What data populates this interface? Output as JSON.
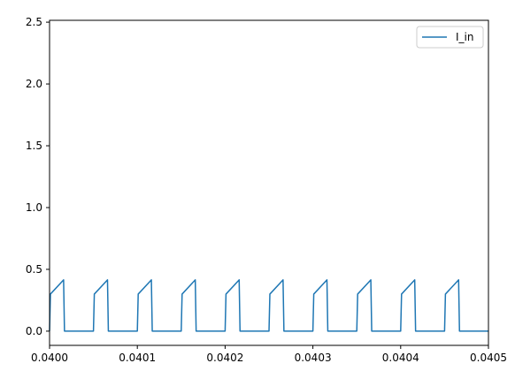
{
  "chart_data": {
    "type": "line",
    "title": "",
    "xlabel": "",
    "ylabel": "",
    "xlim": [
      0.04,
      0.0405
    ],
    "ylim": [
      -0.115,
      2.515
    ],
    "x_ticks": [
      0.04,
      0.0401,
      0.0402,
      0.0403,
      0.0404,
      0.0405
    ],
    "x_tick_labels": [
      "0.0400",
      "0.0401",
      "0.0402",
      "0.0403",
      "0.0404",
      "0.0405"
    ],
    "y_ticks": [
      0.0,
      0.5,
      1.0,
      1.5,
      2.0,
      2.5
    ],
    "y_tick_labels": [
      "0.0",
      "0.5",
      "1.0",
      "1.5",
      "2.0",
      "2.5"
    ],
    "grid": false,
    "legend_position": "top-right",
    "series": [
      {
        "name": "I_in",
        "color": "#1f77b4",
        "x": [
          0.04,
          0.040001,
          0.040016,
          0.040017,
          0.04005,
          0.040051,
          0.040066,
          0.040067,
          0.0401,
          0.040101,
          0.040116,
          0.040117,
          0.04015,
          0.040151,
          0.040166,
          0.040167,
          0.0402,
          0.040201,
          0.040216,
          0.040217,
          0.04025,
          0.040251,
          0.040266,
          0.040267,
          0.0403,
          0.040301,
          0.040316,
          0.040317,
          0.04035,
          0.040351,
          0.040366,
          0.040367,
          0.0404,
          0.040401,
          0.040416,
          0.040417,
          0.04045,
          0.040451,
          0.040466,
          0.040467,
          0.0405
        ],
        "y": [
          0.0,
          0.3,
          0.415,
          0.0,
          0.0,
          0.3,
          0.415,
          0.0,
          0.0,
          0.3,
          0.415,
          0.0,
          0.0,
          0.3,
          0.415,
          0.0,
          0.0,
          0.3,
          0.415,
          0.0,
          0.0,
          0.3,
          0.415,
          0.0,
          0.0,
          0.3,
          0.415,
          0.0,
          0.0,
          0.3,
          0.415,
          0.0,
          0.0,
          0.3,
          0.415,
          0.0,
          0.0,
          0.3,
          0.415,
          0.0,
          0.0
        ]
      }
    ]
  }
}
